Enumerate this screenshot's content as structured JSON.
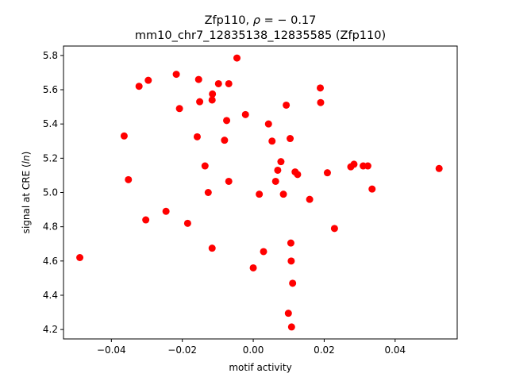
{
  "chart_data": {
    "type": "scatter",
    "title_line1": "Zfp110, ρ = − 0.17",
    "title_line2": "mm10_chr7_12835138_12835585 (Zfp110)",
    "xlabel": "motif activity",
    "ylabel": "signal at CRE (ln)",
    "xlim": [
      -0.0535,
      0.0575
    ],
    "ylim": [
      4.145,
      5.855
    ],
    "x_ticks": [
      -0.04,
      -0.02,
      0.0,
      0.02,
      0.04
    ],
    "x_tick_labels": [
      "−0.04",
      "−0.02",
      "0.00",
      "0.02",
      "0.04"
    ],
    "y_ticks": [
      4.2,
      4.4,
      4.6,
      4.8,
      5.0,
      5.2,
      5.4,
      5.6,
      5.8
    ],
    "y_tick_labels": [
      "4.2",
      "4.4",
      "4.6",
      "4.8",
      "5.0",
      "5.2",
      "5.4",
      "5.6",
      "5.8"
    ],
    "grid": false,
    "marker_color": "#ff0000",
    "points": [
      {
        "x": -0.0489,
        "y": 4.62
      },
      {
        "x": -0.0364,
        "y": 5.33
      },
      {
        "x": -0.0352,
        "y": 5.075
      },
      {
        "x": -0.0322,
        "y": 5.62
      },
      {
        "x": -0.0296,
        "y": 5.655
      },
      {
        "x": -0.0303,
        "y": 4.84
      },
      {
        "x": -0.0246,
        "y": 4.89
      },
      {
        "x": -0.0217,
        "y": 5.69
      },
      {
        "x": -0.0208,
        "y": 5.49
      },
      {
        "x": -0.0185,
        "y": 4.82
      },
      {
        "x": -0.0158,
        "y": 5.325
      },
      {
        "x": -0.0154,
        "y": 5.66
      },
      {
        "x": -0.0151,
        "y": 5.53
      },
      {
        "x": -0.0136,
        "y": 5.155
      },
      {
        "x": -0.0127,
        "y": 5.0
      },
      {
        "x": -0.0115,
        "y": 5.575
      },
      {
        "x": -0.0116,
        "y": 5.54
      },
      {
        "x": -0.0116,
        "y": 4.675
      },
      {
        "x": -0.0098,
        "y": 5.635
      },
      {
        "x": -0.0081,
        "y": 5.305
      },
      {
        "x": -0.0075,
        "y": 5.42
      },
      {
        "x": -0.0069,
        "y": 5.635
      },
      {
        "x": -0.0069,
        "y": 5.065
      },
      {
        "x": -0.0046,
        "y": 5.785
      },
      {
        "x": -0.0022,
        "y": 5.455
      },
      {
        "x": 0.0,
        "y": 4.56
      },
      {
        "x": 0.0017,
        "y": 4.99
      },
      {
        "x": 0.0029,
        "y": 4.655
      },
      {
        "x": 0.0043,
        "y": 5.4
      },
      {
        "x": 0.0053,
        "y": 5.3
      },
      {
        "x": 0.0063,
        "y": 5.065
      },
      {
        "x": 0.0069,
        "y": 5.13
      },
      {
        "x": 0.0078,
        "y": 5.18
      },
      {
        "x": 0.0085,
        "y": 4.99
      },
      {
        "x": 0.0093,
        "y": 5.51
      },
      {
        "x": 0.0099,
        "y": 4.295
      },
      {
        "x": 0.0104,
        "y": 5.315
      },
      {
        "x": 0.0106,
        "y": 4.705
      },
      {
        "x": 0.0107,
        "y": 4.6
      },
      {
        "x": 0.0108,
        "y": 4.215
      },
      {
        "x": 0.0111,
        "y": 4.47
      },
      {
        "x": 0.0118,
        "y": 5.12
      },
      {
        "x": 0.0125,
        "y": 5.105
      },
      {
        "x": 0.0159,
        "y": 4.96
      },
      {
        "x": 0.0189,
        "y": 5.61
      },
      {
        "x": 0.019,
        "y": 5.525
      },
      {
        "x": 0.0209,
        "y": 5.115
      },
      {
        "x": 0.0229,
        "y": 4.79
      },
      {
        "x": 0.0275,
        "y": 5.15
      },
      {
        "x": 0.0284,
        "y": 5.165
      },
      {
        "x": 0.031,
        "y": 5.155
      },
      {
        "x": 0.0323,
        "y": 5.155
      },
      {
        "x": 0.0335,
        "y": 5.02
      },
      {
        "x": 0.0524,
        "y": 5.14
      }
    ]
  }
}
